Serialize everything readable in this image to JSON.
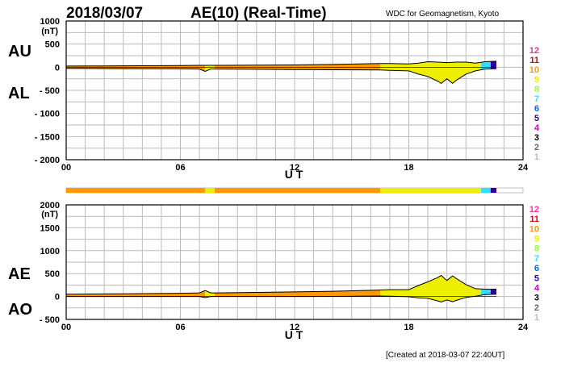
{
  "header": {
    "date": "2018/03/07",
    "title": "AE(10) (Real-Time)",
    "source": "WDC for Geomagnetism, Kyoto"
  },
  "footer": {
    "created": "[Created at 2018-03-07 22:40UT]"
  },
  "legend": {
    "stations": [
      "12",
      "11",
      "10",
      "9",
      "8",
      "7",
      "6",
      "5",
      "4",
      "3",
      "2",
      "1"
    ],
    "colors": [
      "#ff3399",
      "#dd0000",
      "#ff9900",
      "#eeee00",
      "#99ff33",
      "#33ddff",
      "#0066ff",
      "#330099",
      "#cc00cc",
      "#000000",
      "#666666",
      "#bbbbbb"
    ]
  },
  "chart_data": [
    {
      "type": "area",
      "panel": "AU/AL",
      "side_labels": [
        "AU",
        "AL"
      ],
      "unit_label": "(nT)",
      "ylim": [
        -2000,
        1000
      ],
      "yticks": [
        1000,
        500,
        0,
        -500,
        -1000,
        -1500,
        -2000
      ],
      "xlim": [
        0,
        24
      ],
      "xticks": [
        "00",
        "06",
        "12",
        "18",
        "24"
      ],
      "xlabel": "U T",
      "data_end_hour": 22.6,
      "series": [
        {
          "name": "AU",
          "x": [
            0,
            3,
            6,
            7,
            8,
            10,
            12,
            14,
            16.5,
            17,
            18,
            18.5,
            19,
            19.5,
            20,
            20.5,
            21,
            21.5,
            22,
            22.6
          ],
          "values": [
            25,
            30,
            35,
            40,
            40,
            45,
            50,
            60,
            80,
            80,
            70,
            90,
            120,
            110,
            100,
            110,
            110,
            90,
            120,
            130
          ]
        },
        {
          "name": "AL",
          "x": [
            0,
            3,
            6,
            7,
            7.3,
            7.6,
            8,
            10,
            12,
            14,
            16.5,
            17,
            18,
            18.5,
            19,
            19.5,
            19.7,
            20,
            20.3,
            20.5,
            21,
            21.5,
            22,
            22.6
          ],
          "values": [
            -25,
            -30,
            -35,
            -40,
            -90,
            -40,
            -40,
            -45,
            -50,
            -55,
            -60,
            -70,
            -80,
            -150,
            -200,
            -300,
            -350,
            -250,
            -350,
            -280,
            -150,
            -80,
            -40,
            -30
          ]
        }
      ]
    },
    {
      "type": "area",
      "panel": "AE/AO",
      "side_labels": [
        "AE",
        "AO"
      ],
      "unit_label": "(nT)",
      "ylim": [
        -500,
        2000
      ],
      "yticks": [
        2000,
        1500,
        1000,
        500,
        0,
        -500
      ],
      "xlim": [
        0,
        24
      ],
      "xticks": [
        "00",
        "06",
        "12",
        "18",
        "24"
      ],
      "xlabel": "U T",
      "data_end_hour": 22.6,
      "series": [
        {
          "name": "AE",
          "x": [
            0,
            3,
            6,
            7,
            7.3,
            7.6,
            8,
            10,
            12,
            14,
            16.5,
            17,
            18,
            18.5,
            19,
            19.5,
            19.7,
            20,
            20.3,
            20.5,
            21,
            21.5,
            22,
            22.6
          ],
          "values": [
            50,
            60,
            70,
            80,
            130,
            80,
            80,
            90,
            100,
            115,
            140,
            150,
            150,
            240,
            320,
            410,
            460,
            350,
            450,
            390,
            260,
            170,
            160,
            160
          ]
        },
        {
          "name": "AO",
          "x": [
            0,
            3,
            6,
            7,
            7.3,
            7.6,
            8,
            10,
            12,
            14,
            16.5,
            17,
            18,
            18.5,
            19,
            19.5,
            19.7,
            20,
            20.3,
            20.5,
            21,
            21.5,
            22,
            22.6
          ],
          "values": [
            0,
            0,
            0,
            0,
            -25,
            0,
            0,
            0,
            0,
            2,
            10,
            5,
            -5,
            -30,
            -40,
            -95,
            -120,
            -75,
            -115,
            -85,
            -20,
            5,
            40,
            50
          ]
        }
      ]
    }
  ],
  "station_bar": {
    "segments": [
      {
        "from": 0,
        "to": 7.3,
        "color": "#ff9900"
      },
      {
        "from": 7.3,
        "to": 7.8,
        "color": "#eeee00"
      },
      {
        "from": 7.8,
        "to": 16.5,
        "color": "#ff9900"
      },
      {
        "from": 16.5,
        "to": 21.8,
        "color": "#eeee00"
      },
      {
        "from": 21.8,
        "to": 22.3,
        "color": "#33ddff"
      },
      {
        "from": 22.3,
        "to": 22.6,
        "color": "#330099"
      }
    ]
  }
}
